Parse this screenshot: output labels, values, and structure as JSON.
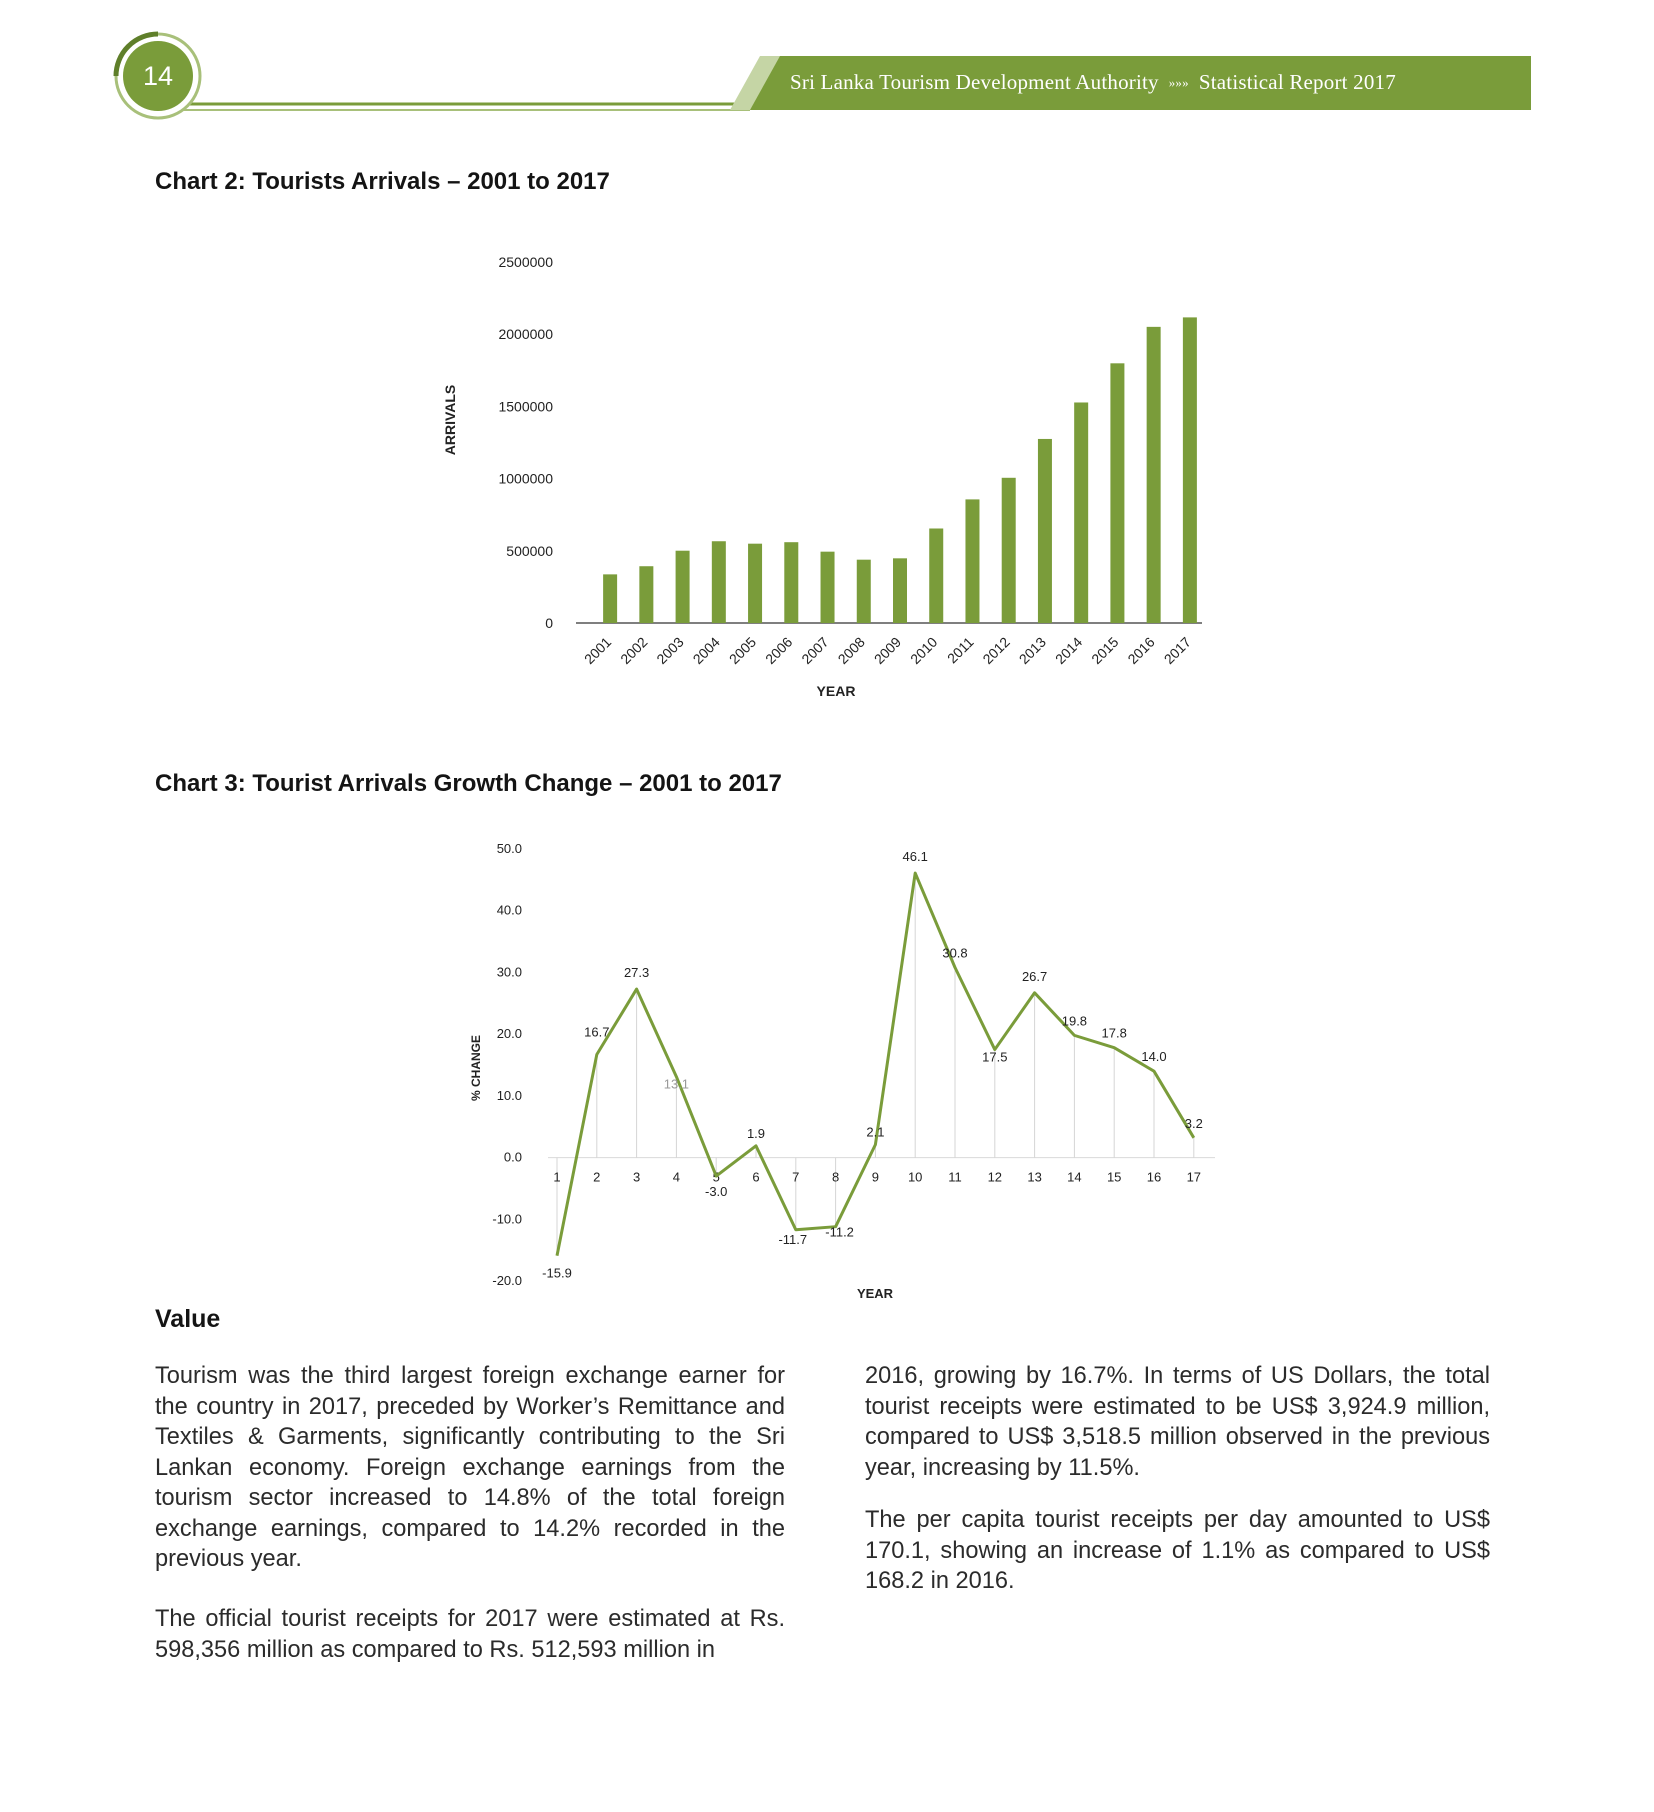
{
  "header": {
    "page_number": "14",
    "organization": "Sri Lanka Tourism Development Authority",
    "separator": "»»»",
    "report": "Statistical Report 2017",
    "accent_color": "#7a9c3a"
  },
  "charts": {
    "chart2_title": "Chart 2: Tourists Arrivals – 2001 to 2017",
    "chart3_title": "Chart 3: Tourist Arrivals Growth Change – 2001 to 2017"
  },
  "chart_data": [
    {
      "type": "bar",
      "title": "Chart 2: Tourists Arrivals – 2001 to 2017",
      "xlabel": "YEAR",
      "ylabel": "ARRIVALS",
      "categories": [
        "2001",
        "2002",
        "2003",
        "2004",
        "2005",
        "2006",
        "2007",
        "2008",
        "2009",
        "2010",
        "2011",
        "2012",
        "2013",
        "2014",
        "2015",
        "2016",
        "2017"
      ],
      "values": [
        336794,
        393171,
        500642,
        566202,
        549308,
        559603,
        494008,
        438475,
        447890,
        654476,
        855975,
        1005605,
        1274593,
        1527153,
        1798380,
        2050832,
        2116407
      ],
      "yticks": [
        "0",
        "500000",
        "1000000",
        "1500000",
        "2000000",
        "2500000"
      ],
      "ylim": [
        0,
        2500000
      ],
      "grid": false,
      "color": "#7a9c3a"
    },
    {
      "type": "line",
      "title": "Chart 3: Tourist Arrivals Growth Change – 2001 to 2017",
      "xlabel": "YEAR",
      "ylabel": "% CHANGE",
      "x": [
        "1",
        "2",
        "3",
        "4",
        "5",
        "6",
        "7",
        "8",
        "9",
        "10",
        "11",
        "12",
        "13",
        "14",
        "15",
        "16",
        "17"
      ],
      "values": [
        -15.9,
        16.7,
        27.3,
        13.1,
        -3.0,
        1.9,
        -11.7,
        -11.2,
        2.1,
        46.1,
        30.8,
        17.5,
        26.7,
        19.8,
        17.8,
        14.0,
        3.2
      ],
      "data_labels": [
        "-15.9",
        "16.7",
        "27.3",
        "13.1",
        "-3.0",
        "1.9",
        "-11.7",
        "-11.2",
        "2.1",
        "46.1",
        "30.8",
        "17.5",
        "26.7",
        "19.8",
        "17.8",
        "14.0",
        "3.2"
      ],
      "yticks": [
        "-20.0",
        "-10.0",
        "0.0",
        "10.0",
        "20.0",
        "30.0",
        "40.0",
        "50.0"
      ],
      "ylim": [
        -20,
        50
      ],
      "drop_lines": true,
      "color": "#7a9c3a"
    }
  ],
  "value_section": {
    "title": "Value",
    "left_para_1": "Tourism was the third largest foreign exchange earner for the country in 2017, preceded by Worker’s Remittance and Textiles & Garments, significantly contributing to the Sri Lankan economy. Foreign exchange earnings from the tourism sector increased to 14.8% of the total foreign exchange earnings, compared to 14.2% recorded in the previous year.",
    "left_para_2": "The official tourist receipts for 2017 were estimated at Rs. 598,356 million as compared to Rs. 512,593 million in",
    "right_para_1": "2016, growing by 16.7%. In terms of US Dollars, the total tourist receipts were estimated to be US$ 3,924.9 million, compared to US$ 3,518.5 million observed in the previous year, increasing by 11.5%.",
    "right_para_2": "The per capita tourist receipts per day amounted to US$ 170.1, showing an increase of 1.1% as compared to US$ 168.2 in 2016."
  }
}
